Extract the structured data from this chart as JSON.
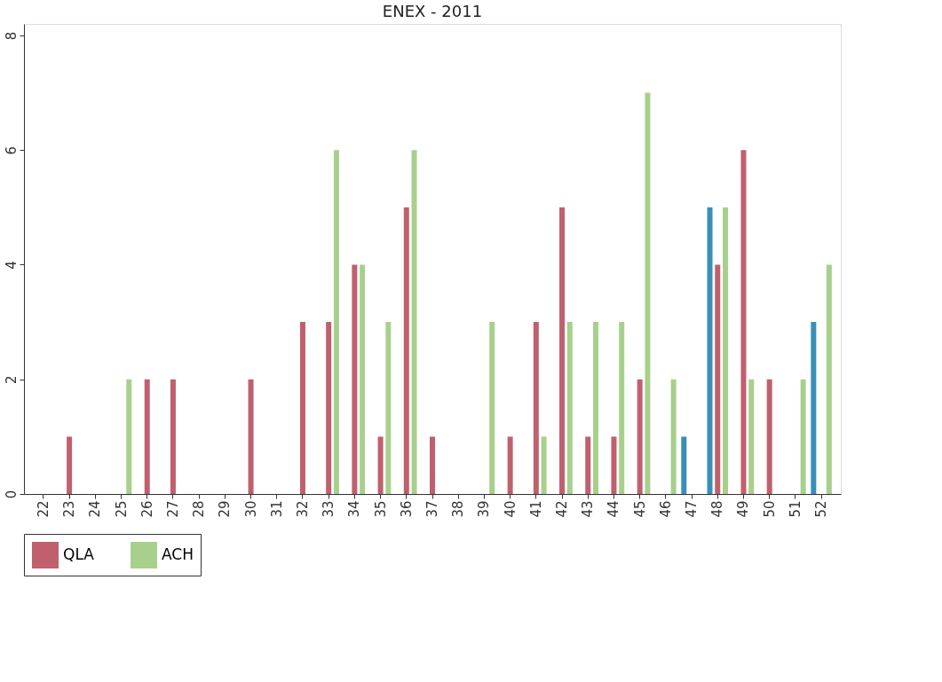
{
  "chart_data": {
    "type": "bar",
    "title": "ENEX - 2011",
    "categories": [
      "22",
      "23",
      "24",
      "25",
      "26",
      "27",
      "28",
      "29",
      "30",
      "31",
      "32",
      "33",
      "34",
      "35",
      "36",
      "37",
      "38",
      "39",
      "40",
      "41",
      "42",
      "43",
      "44",
      "45",
      "46",
      "47",
      "48",
      "49",
      "50",
      "51",
      "52"
    ],
    "series": [
      {
        "color": "#3a8fb7",
        "values": [
          0,
          0,
          0,
          0,
          0,
          0,
          0,
          0,
          0,
          0,
          0,
          0,
          0,
          0,
          0,
          0,
          0,
          0,
          0,
          0,
          0,
          0,
          0,
          0,
          0,
          1,
          5,
          0,
          0,
          0,
          3
        ]
      },
      {
        "name": "QLA",
        "color": "#c0606e",
        "values": [
          0,
          1,
          0,
          0,
          2,
          2,
          0,
          0,
          2,
          0,
          3,
          3,
          4,
          1,
          5,
          1,
          0,
          0,
          1,
          3,
          5,
          1,
          1,
          2,
          0,
          0,
          4,
          6,
          2,
          0,
          0
        ]
      },
      {
        "name": "ACH",
        "color": "#a8d08d",
        "values": [
          0,
          0,
          0,
          2,
          0,
          0,
          0,
          0,
          0,
          0,
          0,
          6,
          4,
          3,
          6,
          0,
          0,
          3,
          0,
          1,
          3,
          3,
          3,
          7,
          2,
          0,
          5,
          2,
          0,
          2,
          4
        ]
      }
    ],
    "ylim": [
      0,
      8.2
    ],
    "yticks": [
      0,
      2,
      4,
      6,
      8
    ],
    "grid": false,
    "legend": "bottom"
  }
}
